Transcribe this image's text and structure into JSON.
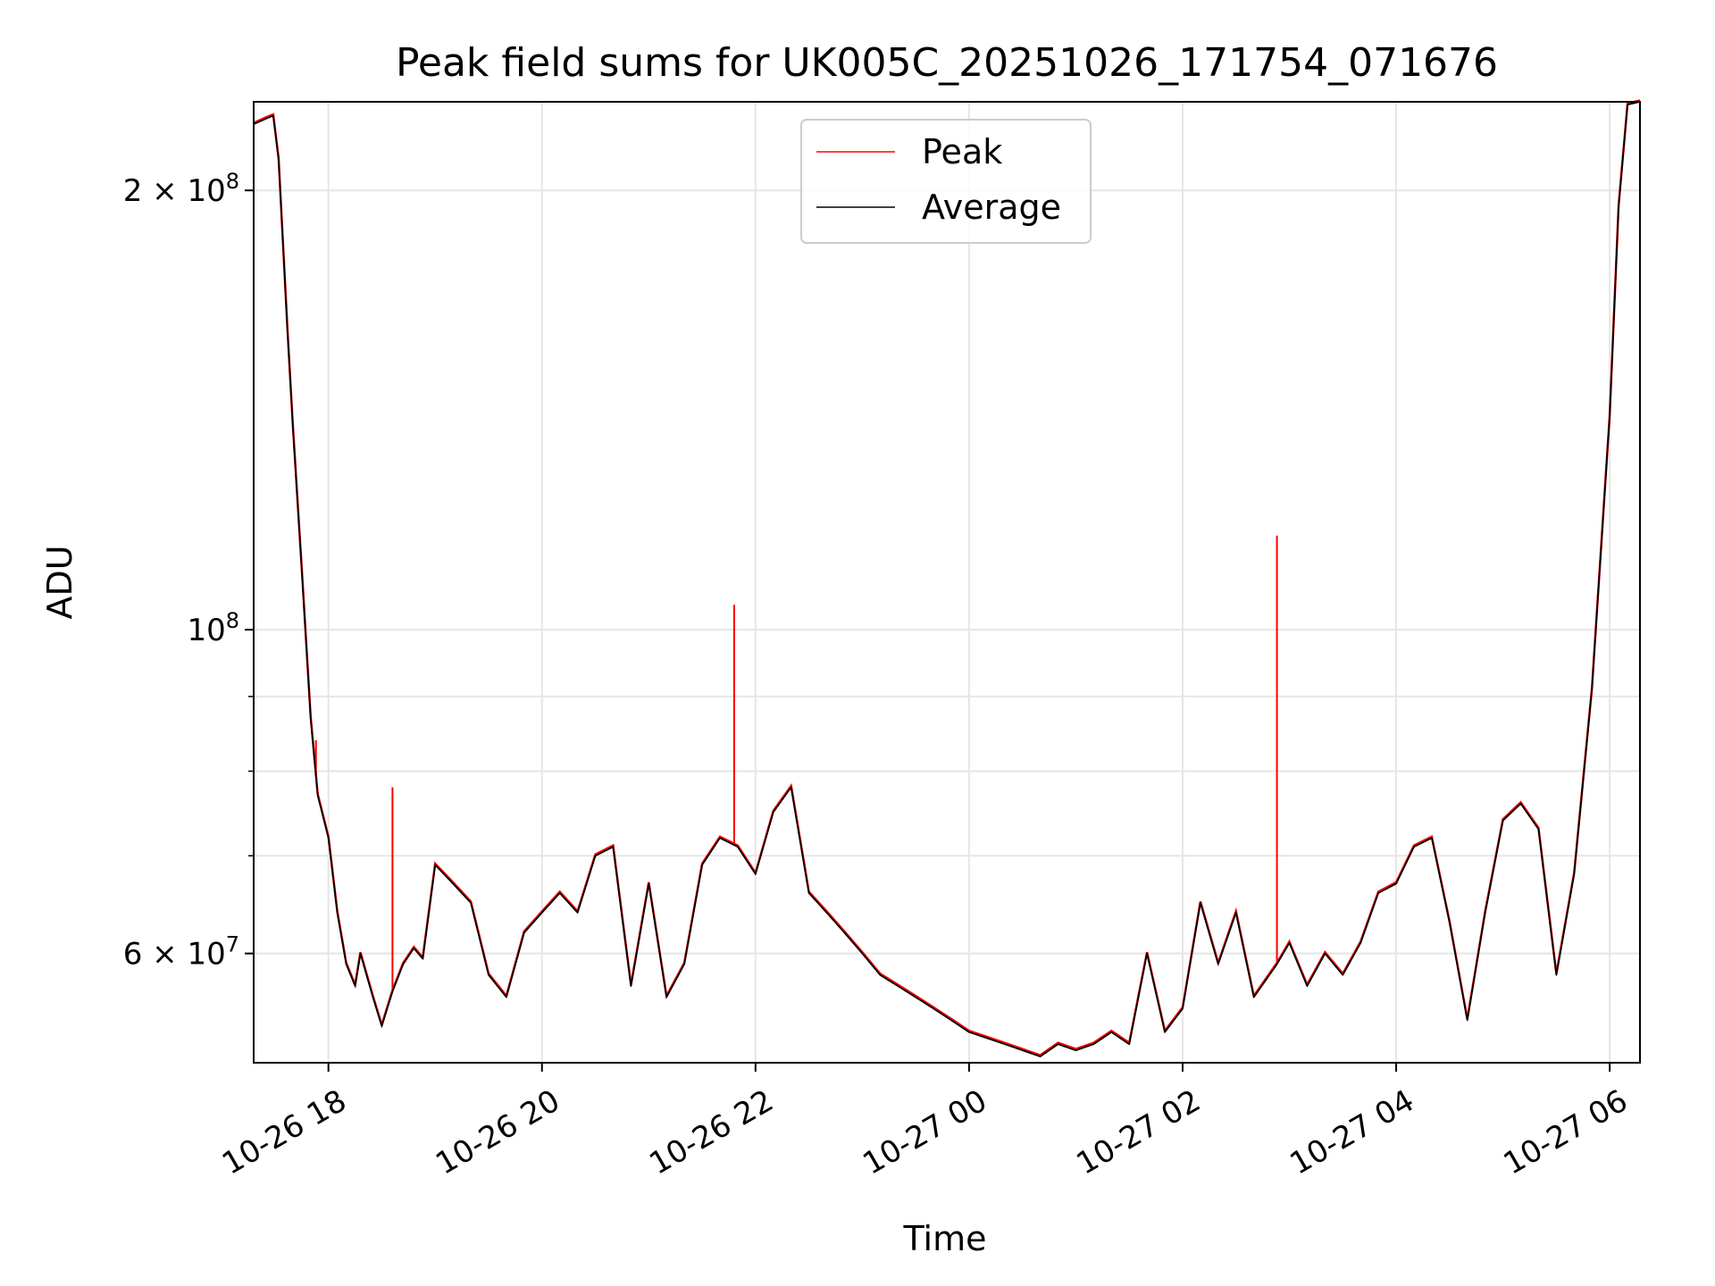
{
  "chart_data": {
    "type": "line",
    "title": "Peak field sums for UK005C_20251026_171754_071676",
    "xlabel": "Time",
    "ylabel": "ADU",
    "y_scale": "log",
    "ylim": [
      50500000,
      230000000
    ],
    "xlim": [
      "2025-10-26 17:18",
      "2025-10-27 06:17"
    ],
    "grid": true,
    "legend_position": "upper-center",
    "x_ticks": [
      {
        "value": "2025-10-26 18:00",
        "label": "10-26 18"
      },
      {
        "value": "2025-10-26 20:00",
        "label": "10-26 20"
      },
      {
        "value": "2025-10-26 22:00",
        "label": "10-26 22"
      },
      {
        "value": "2025-10-27 00:00",
        "label": "10-27 00"
      },
      {
        "value": "2025-10-27 02:00",
        "label": "10-27 02"
      },
      {
        "value": "2025-10-27 04:00",
        "label": "10-27 04"
      },
      {
        "value": "2025-10-27 06:00",
        "label": "10-27 06"
      }
    ],
    "y_ticks": [
      {
        "value": 200000000,
        "label": "2 × 10",
        "sup": "8"
      },
      {
        "value": 100000000,
        "label": "10",
        "sup": "8"
      },
      {
        "value": 60000000,
        "label": "6 × 10",
        "sup": "7"
      }
    ],
    "y_minor_ticks": [
      90000000,
      80000000,
      70000000,
      60000000,
      50000000
    ],
    "series": [
      {
        "name": "Peak",
        "color": "#ff0000",
        "spikes": [
          {
            "x": "2025-10-26 17:53",
            "y": 84000000
          },
          {
            "x": "2025-10-26 18:36",
            "y": 78000000
          },
          {
            "x": "2025-10-26 21:48",
            "y": 104000000
          },
          {
            "x": "2025-10-27 02:53",
            "y": 116000000
          }
        ]
      },
      {
        "name": "Average",
        "color": "#000000",
        "points": [
          [
            "2025-10-26 17:18",
            222000000
          ],
          [
            "2025-10-26 17:25",
            224000000
          ],
          [
            "2025-10-26 17:29",
            225000000
          ],
          [
            "2025-10-26 17:32",
            210000000
          ],
          [
            "2025-10-26 17:37",
            160000000
          ],
          [
            "2025-10-26 17:40",
            138000000
          ],
          [
            "2025-10-26 17:45",
            110000000
          ],
          [
            "2025-10-26 17:50",
            87000000
          ],
          [
            "2025-10-26 17:54",
            77000000
          ],
          [
            "2025-10-26 18:00",
            72000000
          ],
          [
            "2025-10-26 18:05",
            64000000
          ],
          [
            "2025-10-26 18:10",
            59000000
          ],
          [
            "2025-10-26 18:15",
            57000000
          ],
          [
            "2025-10-26 18:18",
            60000000
          ],
          [
            "2025-10-26 18:25",
            56000000
          ],
          [
            "2025-10-26 18:30",
            53500000
          ],
          [
            "2025-10-26 18:36",
            56500000
          ],
          [
            "2025-10-26 18:42",
            59000000
          ],
          [
            "2025-10-26 18:48",
            60500000
          ],
          [
            "2025-10-26 18:53",
            59500000
          ],
          [
            "2025-10-26 19:00",
            69000000
          ],
          [
            "2025-10-26 19:10",
            67000000
          ],
          [
            "2025-10-26 19:20",
            65000000
          ],
          [
            "2025-10-26 19:30",
            58000000
          ],
          [
            "2025-10-26 19:40",
            56000000
          ],
          [
            "2025-10-26 19:50",
            62000000
          ],
          [
            "2025-10-26 20:00",
            64000000
          ],
          [
            "2025-10-26 20:10",
            66000000
          ],
          [
            "2025-10-26 20:20",
            64000000
          ],
          [
            "2025-10-26 20:30",
            70000000
          ],
          [
            "2025-10-26 20:40",
            71000000
          ],
          [
            "2025-10-26 20:50",
            57000000
          ],
          [
            "2025-10-26 21:00",
            67000000
          ],
          [
            "2025-10-26 21:10",
            56000000
          ],
          [
            "2025-10-26 21:20",
            59000000
          ],
          [
            "2025-10-26 21:30",
            69000000
          ],
          [
            "2025-10-26 21:40",
            72000000
          ],
          [
            "2025-10-26 21:50",
            71000000
          ],
          [
            "2025-10-26 22:00",
            68000000
          ],
          [
            "2025-10-26 22:10",
            75000000
          ],
          [
            "2025-10-26 22:20",
            78000000
          ],
          [
            "2025-10-26 22:30",
            66000000
          ],
          [
            "2025-10-26 22:40",
            64000000
          ],
          [
            "2025-10-26 22:50",
            62000000
          ],
          [
            "2025-10-26 23:00",
            60000000
          ],
          [
            "2025-10-26 23:10",
            58000000
          ],
          [
            "2025-10-26 23:20",
            57000000
          ],
          [
            "2025-10-26 23:30",
            56000000
          ],
          [
            "2025-10-26 23:40",
            55000000
          ],
          [
            "2025-10-26 23:50",
            54000000
          ],
          [
            "2025-10-27 00:00",
            53000000
          ],
          [
            "2025-10-27 00:10",
            52500000
          ],
          [
            "2025-10-27 00:20",
            52000000
          ],
          [
            "2025-10-27 00:30",
            51500000
          ],
          [
            "2025-10-27 00:40",
            51000000
          ],
          [
            "2025-10-27 00:50",
            52000000
          ],
          [
            "2025-10-27 01:00",
            51500000
          ],
          [
            "2025-10-27 01:10",
            52000000
          ],
          [
            "2025-10-27 01:20",
            53000000
          ],
          [
            "2025-10-27 01:30",
            52000000
          ],
          [
            "2025-10-27 01:40",
            60000000
          ],
          [
            "2025-10-27 01:50",
            53000000
          ],
          [
            "2025-10-27 02:00",
            55000000
          ],
          [
            "2025-10-27 02:10",
            65000000
          ],
          [
            "2025-10-27 02:20",
            59000000
          ],
          [
            "2025-10-27 02:30",
            64000000
          ],
          [
            "2025-10-27 02:40",
            56000000
          ],
          [
            "2025-10-27 02:53",
            59000000
          ],
          [
            "2025-10-27 03:00",
            61000000
          ],
          [
            "2025-10-27 03:10",
            57000000
          ],
          [
            "2025-10-27 03:20",
            60000000
          ],
          [
            "2025-10-27 03:30",
            58000000
          ],
          [
            "2025-10-27 03:40",
            61000000
          ],
          [
            "2025-10-27 03:50",
            66000000
          ],
          [
            "2025-10-27 04:00",
            67000000
          ],
          [
            "2025-10-27 04:10",
            71000000
          ],
          [
            "2025-10-27 04:20",
            72000000
          ],
          [
            "2025-10-27 04:30",
            63000000
          ],
          [
            "2025-10-27 04:40",
            54000000
          ],
          [
            "2025-10-27 04:50",
            64000000
          ],
          [
            "2025-10-27 05:00",
            74000000
          ],
          [
            "2025-10-27 05:10",
            76000000
          ],
          [
            "2025-10-27 05:20",
            73000000
          ],
          [
            "2025-10-27 05:30",
            58000000
          ],
          [
            "2025-10-27 05:40",
            68000000
          ],
          [
            "2025-10-27 05:50",
            91000000
          ],
          [
            "2025-10-27 06:00",
            140000000
          ],
          [
            "2025-10-27 06:05",
            195000000
          ],
          [
            "2025-10-27 06:10",
            229000000
          ],
          [
            "2025-10-27 06:17",
            230000000
          ]
        ]
      }
    ]
  }
}
